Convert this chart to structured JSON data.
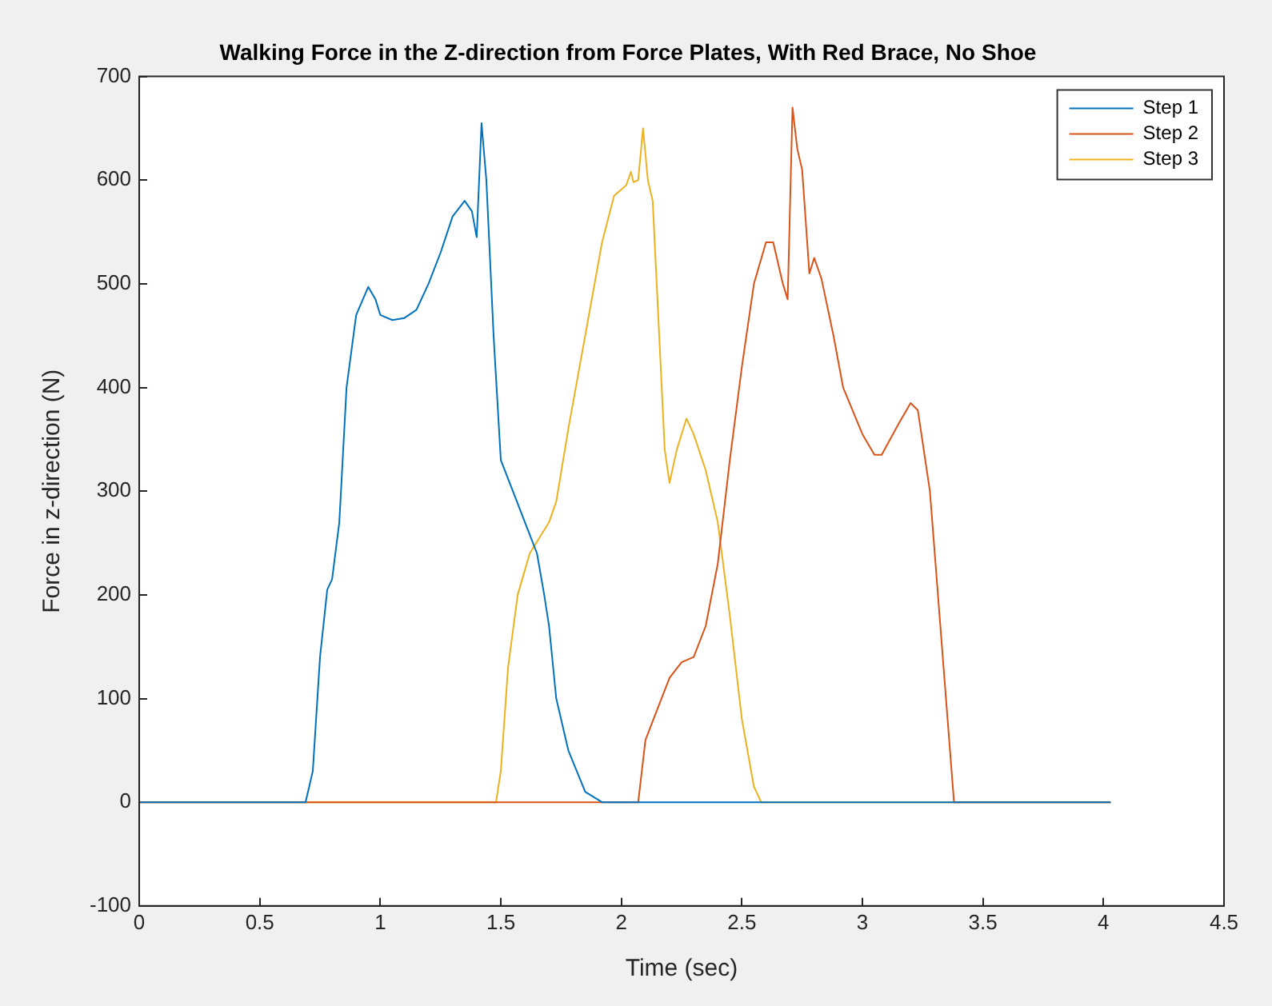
{
  "chart_data": {
    "type": "line",
    "title": "Walking Force in the Z-direction from Force Plates, With Red Brace, No Shoe",
    "xlabel": "Time (sec)",
    "ylabel": "Force in z-direction (N)",
    "xlim": [
      0,
      4.5
    ],
    "xticks": [
      0,
      0.5,
      1,
      1.5,
      2,
      2.5,
      3,
      3.5,
      4,
      4.5
    ],
    "ylim": [
      -100,
      700
    ],
    "yticks": [
      -100,
      0,
      100,
      200,
      300,
      400,
      500,
      600,
      700
    ],
    "grid": false,
    "legend": "top right",
    "marker": "none",
    "line_style": "solid",
    "series": [
      {
        "name": "Step 1",
        "color": "#0072bd",
        "x": [
          0,
          0.69,
          0.7,
          0.72,
          0.75,
          0.78,
          0.8,
          0.83,
          0.86,
          0.9,
          0.95,
          0.98,
          1.0,
          1.05,
          1.1,
          1.15,
          1.2,
          1.25,
          1.3,
          1.35,
          1.38,
          1.4,
          1.42,
          1.44,
          1.47,
          1.5,
          1.55,
          1.6,
          1.65,
          1.68,
          1.7,
          1.73,
          1.78,
          1.85,
          1.92,
          4.03
        ],
        "values": [
          0,
          0,
          10,
          30,
          140,
          205,
          215,
          270,
          400,
          470,
          497,
          485,
          470,
          465,
          467,
          475,
          500,
          530,
          565,
          580,
          570,
          545,
          655,
          600,
          450,
          330,
          300,
          270,
          240,
          200,
          170,
          100,
          50,
          10,
          0,
          0
        ]
      },
      {
        "name": "Step 2",
        "color": "#d95319",
        "x": [
          0,
          2.07,
          2.08,
          2.1,
          2.15,
          2.2,
          2.25,
          2.3,
          2.35,
          2.4,
          2.45,
          2.5,
          2.55,
          2.6,
          2.63,
          2.67,
          2.69,
          2.71,
          2.73,
          2.75,
          2.78,
          2.8,
          2.83,
          2.88,
          2.92,
          3.0,
          3.05,
          3.08,
          3.15,
          3.2,
          3.23,
          3.28,
          3.33,
          3.38,
          4.03
        ],
        "values": [
          0,
          0,
          20,
          60,
          90,
          120,
          135,
          140,
          170,
          230,
          330,
          420,
          500,
          540,
          540,
          500,
          485,
          670,
          630,
          610,
          510,
          525,
          505,
          450,
          400,
          355,
          335,
          335,
          365,
          385,
          378,
          300,
          150,
          0,
          0
        ]
      },
      {
        "name": "Step 3",
        "color": "#edb120",
        "x": [
          0,
          1.48,
          1.5,
          1.53,
          1.57,
          1.62,
          1.7,
          1.73,
          1.78,
          1.85,
          1.92,
          1.97,
          2.02,
          2.04,
          2.05,
          2.07,
          2.09,
          2.11,
          2.13,
          2.18,
          2.2,
          2.23,
          2.27,
          2.3,
          2.35,
          2.4,
          2.45,
          2.5,
          2.55,
          2.58,
          4.03
        ],
        "values": [
          0,
          0,
          30,
          130,
          200,
          240,
          270,
          290,
          360,
          450,
          540,
          585,
          595,
          608,
          598,
          600,
          650,
          600,
          580,
          340,
          308,
          340,
          370,
          355,
          320,
          270,
          180,
          80,
          15,
          0,
          0
        ]
      }
    ]
  }
}
